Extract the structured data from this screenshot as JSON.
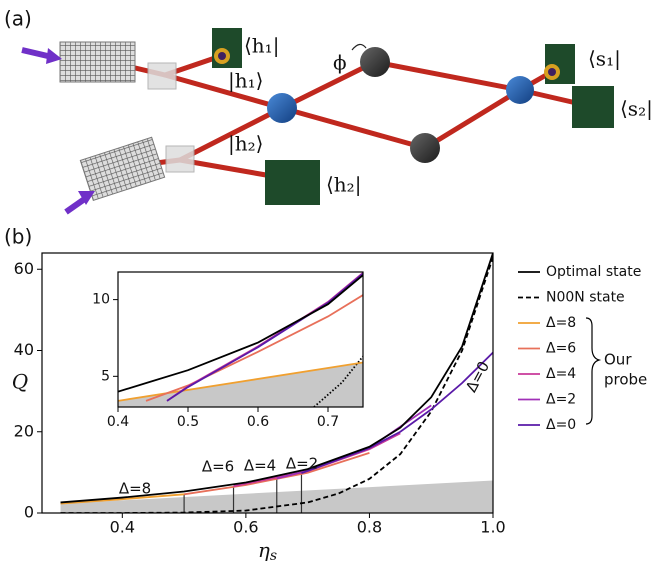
{
  "panel_a": {
    "label": "(a)",
    "labels": [
      "⟨h₁|",
      "|h₁⟩",
      "|h₂⟩",
      "⟨h₂|",
      "⟨s₁|",
      "⟨s₂|",
      "ϕ"
    ]
  },
  "panel_b_label": "(b)",
  "chart_data": [
    {
      "type": "line",
      "xlabel": {
        "symbol": "η",
        "subscript": "s"
      },
      "ylabel": "Q",
      "xlim": [
        0.27,
        1.0
      ],
      "ylim": [
        0,
        64
      ],
      "xticks": [
        0.4,
        0.6,
        0.8,
        {
          "value": 1.0,
          "label": "1.0"
        }
      ],
      "yticks": [
        0,
        20,
        40,
        60
      ],
      "shaded_region": {
        "color": "#c8c8c8",
        "x": [
          0.3,
          1.0
        ],
        "values": [
          2.3,
          8
        ]
      },
      "drop_lines": {
        "color": "#333333",
        "x": [
          0.5,
          0.58,
          0.65,
          0.69
        ],
        "values": [
          4.6,
          6.6,
          8.5,
          9.8
        ]
      },
      "series": [
        {
          "name": "N00N state",
          "color": "#000000",
          "linestyle": "dashed",
          "x": [
            0.3,
            0.4,
            0.5,
            0.6,
            0.7,
            0.75,
            0.8,
            0.85,
            0.9,
            0.95,
            1.0
          ],
          "values": [
            0,
            0,
            0.1,
            0.6,
            2.6,
            4.8,
            8.4,
            14.5,
            25,
            40,
            63
          ]
        },
        {
          "name": "Δ=8",
          "color": "#f0a030",
          "linestyle": "solid",
          "x": [
            0.3,
            0.4,
            0.5
          ],
          "values": [
            2.3,
            3.4,
            4.6
          ]
        },
        {
          "name": "Δ=6",
          "color": "#e8705a",
          "linestyle": "solid",
          "x": [
            0.5,
            0.6,
            0.7,
            0.8
          ],
          "values": [
            4.6,
            6.9,
            9.9,
            14.8
          ]
        },
        {
          "name": "Δ=4",
          "color": "#c8389a",
          "linestyle": "solid",
          "x": [
            0.58,
            0.7,
            0.8,
            0.85
          ],
          "values": [
            6.6,
            10.3,
            15.7,
            19.6
          ]
        },
        {
          "name": "Δ=2",
          "color": "#a030b8",
          "linestyle": "solid",
          "x": [
            0.65,
            0.7,
            0.8,
            0.9
          ],
          "values": [
            8.5,
            10.4,
            16,
            26.5
          ]
        },
        {
          "name": "Δ=0",
          "color": "#5a1aa8",
          "linestyle": "solid",
          "x": [
            0.69,
            0.8,
            0.85,
            0.9,
            0.95,
            1.0
          ],
          "values": [
            9.8,
            16,
            20,
            25.5,
            32,
            39.5
          ]
        },
        {
          "name": "Optimal state",
          "color": "#000000",
          "linestyle": "solid",
          "x": [
            0.3,
            0.4,
            0.5,
            0.6,
            0.7,
            0.8,
            0.85,
            0.9,
            0.95,
            1.0
          ],
          "values": [
            2.6,
            3.8,
            5.3,
            7.5,
            10.8,
            16.3,
            21,
            28.5,
            41,
            64
          ]
        }
      ],
      "annotations": [
        {
          "text": "Δ=8",
          "color": "#f0a030"
        },
        {
          "text": "Δ=6",
          "color": "#e8705a"
        },
        {
          "text": "Δ=4",
          "color": "#c8389a"
        },
        {
          "text": "Δ=2",
          "color": "#a030b8"
        },
        {
          "text": "Δ=0",
          "color": "#5a1aa8"
        }
      ],
      "legend": {
        "position": "outside right",
        "group_label": [
          "Our",
          "probe"
        ]
      }
    },
    {
      "type": "line",
      "xlim": [
        0.4,
        0.75
      ],
      "ylim": [
        3.0,
        11.8
      ],
      "xticks": [
        0.4,
        0.5,
        0.6,
        0.7
      ],
      "yticks": [
        5,
        10
      ],
      "shaded_region": {
        "color": "#c8c8c8",
        "x": [
          0.4,
          0.75
        ],
        "values": [
          3.4,
          5.9
        ]
      },
      "series": [
        {
          "color": "#000000",
          "linestyle": "dotted",
          "x": [
            0.68,
            0.72,
            0.75
          ],
          "values": [
            3.0,
            4.6,
            6.3
          ]
        },
        {
          "color": "#f0a030",
          "linestyle": "solid",
          "x": [
            0.4,
            0.75
          ],
          "values": [
            3.4,
            5.9
          ]
        },
        {
          "color": "#e8705a",
          "linestyle": "solid",
          "x": [
            0.44,
            0.5,
            0.6,
            0.7,
            0.75
          ],
          "values": [
            3.4,
            4.4,
            6.6,
            8.9,
            10.3
          ]
        },
        {
          "color": "#c8389a",
          "linestyle": "solid",
          "x": [
            0.47,
            0.5,
            0.6,
            0.7,
            0.75
          ],
          "values": [
            3.4,
            4.35,
            6.95,
            9.85,
            11.75
          ]
        },
        {
          "color": "#5a1aa8",
          "linestyle": "solid",
          "x": [
            0.47,
            0.5,
            0.6,
            0.7,
            0.75
          ],
          "values": [
            3.4,
            4.3,
            6.9,
            9.8,
            11.7
          ]
        },
        {
          "color": "#000000",
          "linestyle": "solid",
          "x": [
            0.4,
            0.5,
            0.6,
            0.7,
            0.75
          ],
          "values": [
            4.0,
            5.4,
            7.2,
            9.7,
            11.6
          ]
        }
      ]
    }
  ]
}
